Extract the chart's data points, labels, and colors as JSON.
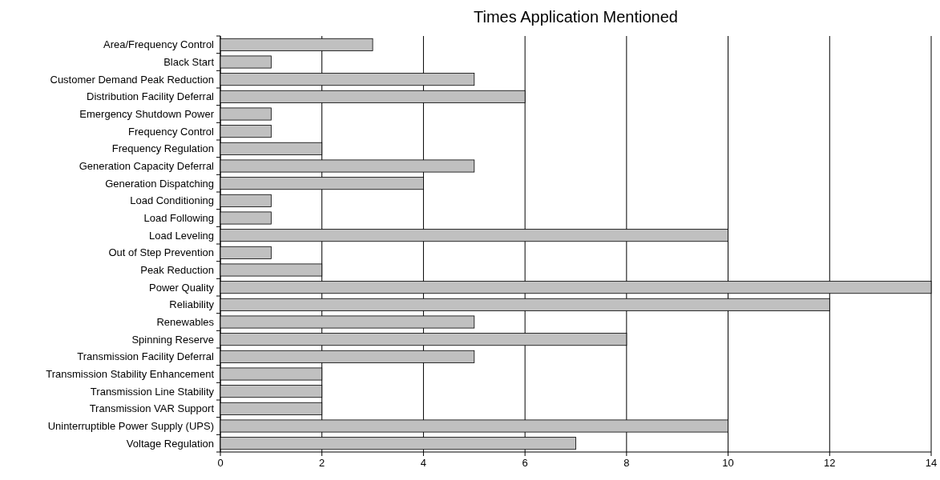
{
  "chart_data": {
    "type": "bar",
    "orientation": "horizontal",
    "title": "Times Application Mentioned",
    "categories": [
      "Area/Frequency Control",
      "Black Start",
      "Customer Demand Peak Reduction",
      "Distribution Facility Deferral",
      "Emergency Shutdown Power",
      "Frequency Control",
      "Frequency Regulation",
      "Generation Capacity Deferral",
      "Generation Dispatching",
      "Load Conditioning",
      "Load Following",
      "Load Leveling",
      "Out of Step Prevention",
      "Peak Reduction",
      "Power Quality",
      "Reliability",
      "Renewables",
      "Spinning Reserve",
      "Transmission Facility Deferral",
      "Transmission Stability Enhancement",
      "Transmission Line Stability",
      "Transmission VAR Support",
      "Uninterruptible Power Supply (UPS)",
      "Voltage Regulation"
    ],
    "values": [
      3,
      1,
      5,
      6,
      1,
      1,
      2,
      5,
      4,
      1,
      1,
      10,
      1,
      2,
      14,
      12,
      5,
      8,
      5,
      2,
      2,
      2,
      10,
      7
    ],
    "color": "#c0c0c0",
    "xlim": [
      0,
      14
    ],
    "xticks": [
      0,
      2,
      4,
      6,
      8,
      10,
      12,
      14
    ],
    "grid": "x"
  }
}
